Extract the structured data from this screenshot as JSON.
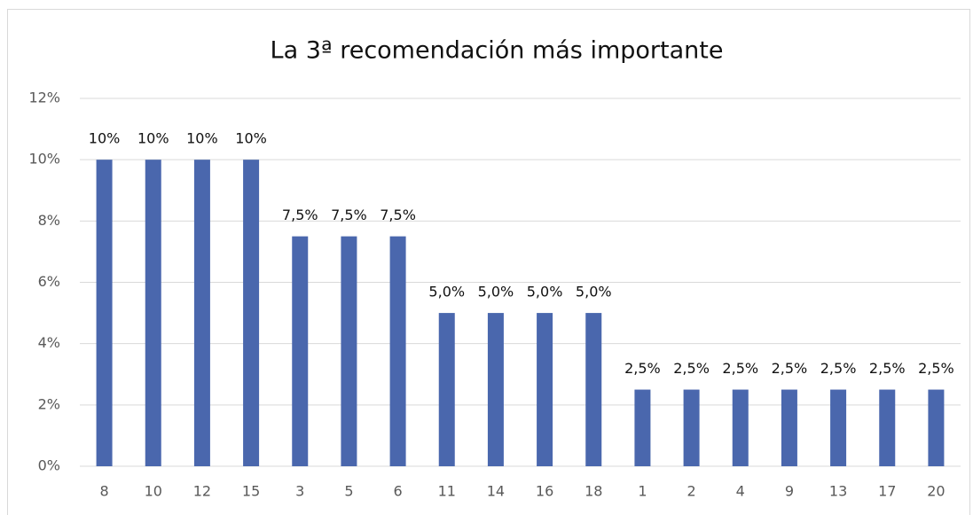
{
  "chart_data": {
    "type": "bar",
    "title": "La 3ª recomendación más importante",
    "categories": [
      "8",
      "10",
      "12",
      "15",
      "3",
      "5",
      "6",
      "11",
      "14",
      "16",
      "18",
      "1",
      "2",
      "4",
      "9",
      "13",
      "17",
      "20"
    ],
    "values": [
      10,
      10,
      10,
      10,
      7.5,
      7.5,
      7.5,
      5,
      5,
      5,
      5,
      2.5,
      2.5,
      2.5,
      2.5,
      2.5,
      2.5,
      2.5
    ],
    "value_labels": [
      "10%",
      "10%",
      "10%",
      "10%",
      "7,5%",
      "7,5%",
      "7,5%",
      "5,0%",
      "5,0%",
      "5,0%",
      "5,0%",
      "2,5%",
      "2,5%",
      "2,5%",
      "2,5%",
      "2,5%",
      "2,5%",
      "2,5%"
    ],
    "color": "#4a67ad",
    "ylim": [
      0,
      12
    ],
    "yticks": [
      {
        "value": 0,
        "label": "0%"
      },
      {
        "value": 2,
        "label": "2%"
      },
      {
        "value": 4,
        "label": "4%"
      },
      {
        "value": 6,
        "label": "6%"
      },
      {
        "value": 8,
        "label": "8%"
      },
      {
        "value": 10,
        "label": "10%"
      },
      {
        "value": 12,
        "label": "12%"
      }
    ],
    "grid": true
  }
}
